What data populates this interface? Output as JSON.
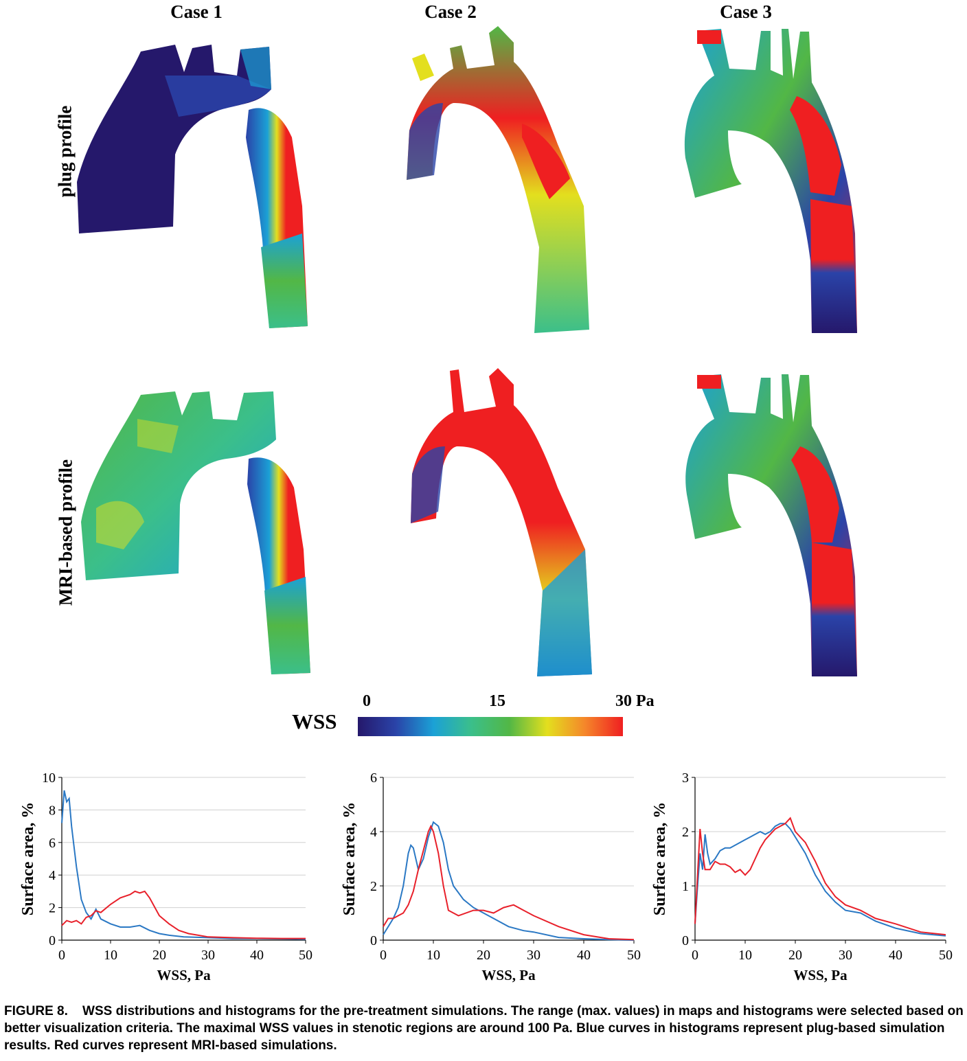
{
  "figure": {
    "case_titles": [
      "Case 1",
      "Case 2",
      "Case 3"
    ],
    "row_labels": [
      "plug profile",
      "MRI-based profile"
    ],
    "colorbar": {
      "title": "WSS",
      "ticks": [
        "0",
        "15",
        "30 Pa"
      ],
      "colors": [
        "#25186b",
        "#2a43a8",
        "#1ba1d6",
        "#3bbf8a",
        "#52b746",
        "#e3df1e",
        "#f5862a",
        "#ef1f21"
      ]
    },
    "caption": {
      "label": "FIGURE 8.",
      "text": "WSS distributions and histograms for the pre-treatment simulations. The range (max. values) in maps and histograms were selected based on better visualization criteria. The maximal WSS values in stenotic regions are around 100 Pa. Blue curves in histograms represent plug-based simulation results. Red curves represent MRI-based simulations."
    }
  },
  "chart_data": [
    {
      "type": "line",
      "xlabel": "WSS, Pa",
      "ylabel": "Surface area, %",
      "xlim": [
        0,
        50
      ],
      "ylim": [
        0,
        10
      ],
      "xticks": [
        0,
        10,
        20,
        30,
        40,
        50
      ],
      "yticks": [
        0,
        2,
        4,
        6,
        8,
        10
      ],
      "grid": "horizontal",
      "colors": {
        "plug": "#2a78c4",
        "mri": "#e8202a"
      },
      "series": [
        {
          "x": [
            0,
            0.5,
            1,
            1.5,
            2,
            3,
            4,
            5,
            6,
            7,
            8,
            10,
            12,
            14,
            16,
            18,
            20,
            22,
            25,
            30,
            35,
            40,
            45,
            50
          ],
          "values": [
            7.2,
            9.2,
            8.5,
            8.7,
            7.0,
            4.5,
            2.5,
            1.7,
            1.3,
            1.9,
            1.3,
            1.0,
            0.8,
            0.8,
            0.9,
            0.6,
            0.4,
            0.3,
            0.2,
            0.15,
            0.1,
            0.1,
            0.08,
            0.05
          ]
        },
        {
          "x": [
            0,
            1,
            2,
            3,
            4,
            5,
            6,
            7,
            8,
            10,
            12,
            14,
            15,
            16,
            17,
            18,
            20,
            22,
            24,
            26,
            28,
            30,
            35,
            40,
            45,
            50
          ],
          "values": [
            0.9,
            1.2,
            1.1,
            1.2,
            1.0,
            1.4,
            1.5,
            1.8,
            1.7,
            2.2,
            2.6,
            2.8,
            3.0,
            2.9,
            3.0,
            2.6,
            1.5,
            1.0,
            0.6,
            0.4,
            0.3,
            0.2,
            0.15,
            0.12,
            0.1,
            0.1
          ]
        }
      ]
    },
    {
      "type": "line",
      "xlabel": "WSS, Pa",
      "ylabel": "Surface area, %",
      "xlim": [
        0,
        50
      ],
      "ylim": [
        0,
        6
      ],
      "xticks": [
        0,
        10,
        20,
        30,
        40,
        50
      ],
      "yticks": [
        0,
        2,
        4,
        6
      ],
      "grid": "horizontal",
      "colors": {
        "plug": "#2a78c4",
        "mri": "#e8202a"
      },
      "series": [
        {
          "x": [
            0,
            1,
            2,
            3,
            4,
            5,
            5.5,
            6,
            7,
            8,
            9,
            10,
            11,
            12,
            13,
            14,
            16,
            18,
            20,
            22,
            25,
            28,
            30,
            35,
            40,
            45,
            50
          ],
          "values": [
            0.2,
            0.5,
            0.8,
            1.2,
            2.0,
            3.2,
            3.5,
            3.4,
            2.6,
            3.0,
            3.8,
            4.35,
            4.2,
            3.6,
            2.6,
            2.0,
            1.5,
            1.2,
            1.0,
            0.8,
            0.5,
            0.35,
            0.3,
            0.1,
            0.05,
            0.02,
            0.0
          ]
        },
        {
          "x": [
            0,
            1,
            2,
            3,
            4,
            5,
            6,
            7,
            8,
            9,
            9.5,
            10,
            11,
            12,
            13,
            15,
            18,
            20,
            22,
            24,
            26,
            28,
            30,
            35,
            40,
            45,
            50
          ],
          "values": [
            0.5,
            0.8,
            0.8,
            0.9,
            1.0,
            1.3,
            1.8,
            2.6,
            3.3,
            4.0,
            4.2,
            4.0,
            3.2,
            2.0,
            1.1,
            0.9,
            1.1,
            1.1,
            1.0,
            1.2,
            1.3,
            1.1,
            0.9,
            0.5,
            0.2,
            0.05,
            0.02
          ]
        }
      ]
    },
    {
      "type": "line",
      "xlabel": "WSS, Pa",
      "ylabel": "Surface area, %",
      "xlim": [
        0,
        50
      ],
      "ylim": [
        0,
        3
      ],
      "xticks": [
        0,
        10,
        20,
        30,
        40,
        50
      ],
      "yticks": [
        0,
        1,
        2,
        3
      ],
      "grid": "horizontal",
      "colors": {
        "plug": "#2a78c4",
        "mri": "#e8202a"
      },
      "series": [
        {
          "x": [
            0,
            0.5,
            1,
            1.5,
            2,
            2.5,
            3,
            4,
            5,
            6,
            7,
            8,
            9,
            10,
            11,
            12,
            13,
            14,
            15,
            16,
            17,
            18,
            19,
            20,
            22,
            24,
            26,
            28,
            30,
            33,
            36,
            40,
            45,
            50
          ],
          "values": [
            0.3,
            1.0,
            1.6,
            1.3,
            1.95,
            1.6,
            1.4,
            1.5,
            1.65,
            1.7,
            1.7,
            1.75,
            1.8,
            1.85,
            1.9,
            1.95,
            2.0,
            1.95,
            2.0,
            2.1,
            2.15,
            2.15,
            2.05,
            1.9,
            1.6,
            1.2,
            0.9,
            0.7,
            0.55,
            0.5,
            0.35,
            0.22,
            0.12,
            0.08
          ]
        },
        {
          "x": [
            0,
            0.5,
            1,
            1.5,
            2,
            3,
            4,
            5,
            6,
            7,
            8,
            9,
            10,
            11,
            12,
            13,
            14,
            15,
            16,
            17,
            18,
            19,
            20,
            22,
            24,
            26,
            28,
            30,
            33,
            36,
            40,
            45,
            50
          ],
          "values": [
            0.3,
            1.2,
            2.05,
            1.6,
            1.3,
            1.3,
            1.45,
            1.4,
            1.4,
            1.35,
            1.25,
            1.3,
            1.2,
            1.3,
            1.5,
            1.7,
            1.85,
            1.95,
            2.05,
            2.1,
            2.15,
            2.25,
            2.0,
            1.8,
            1.45,
            1.05,
            0.8,
            0.65,
            0.55,
            0.4,
            0.3,
            0.15,
            0.1
          ]
        }
      ]
    }
  ]
}
